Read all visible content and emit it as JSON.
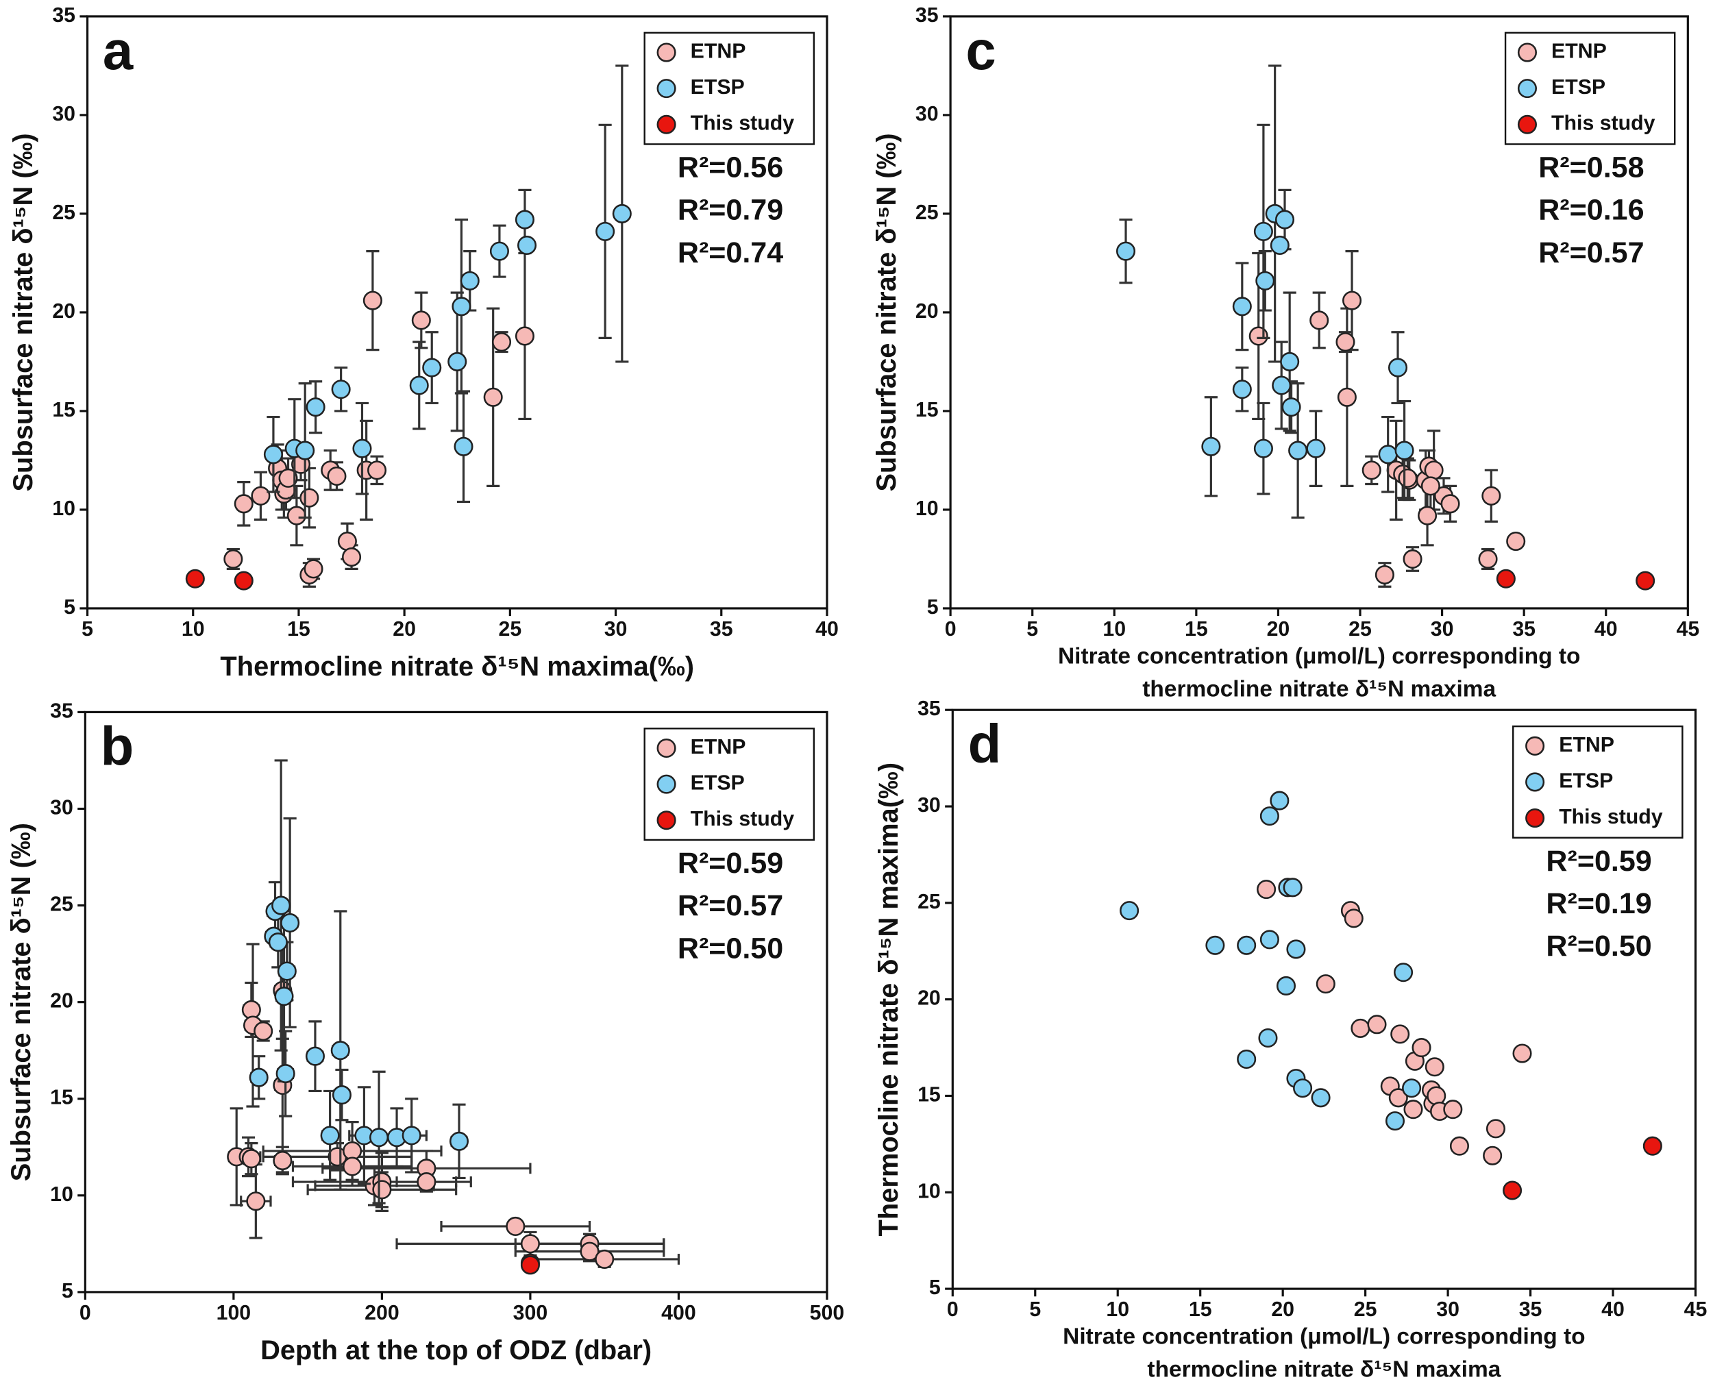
{
  "chart_data": [
    {
      "type": "scatter",
      "panel": "a",
      "xlabel": [
        "Thermocline nitrate δ¹⁵N maxima(‰)"
      ],
      "ylabel": "Subsurface nitrate δ¹⁵N (‰)",
      "xlim": [
        5,
        40
      ],
      "xticks": [
        5,
        10,
        15,
        20,
        25,
        30,
        35,
        40
      ],
      "ylim": [
        5,
        35
      ],
      "yticks": [
        5,
        10,
        15,
        20,
        25,
        30,
        35
      ],
      "legend": "upper right",
      "annotations": [
        {
          "text": "R²=0.56",
          "color": "#f4a09c"
        },
        {
          "text": "R²=0.79",
          "color": "#5ec0ee"
        },
        {
          "text": "R²=0.74",
          "color": "#111111"
        }
      ],
      "series": [
        {
          "name": "ETNP",
          "color": "#f6b9b6",
          "x": [
            12.4,
            13.2,
            14.0,
            14.2,
            14.3,
            14.4,
            14.5,
            14.9,
            15.1,
            15.5,
            15.5,
            15.7,
            16.5,
            16.8,
            17.3,
            17.5,
            18.2,
            18.7,
            18.5,
            20.8,
            24.2,
            24.6,
            25.7,
            11.9
          ],
          "values": [
            10.3,
            10.7,
            12.1,
            11.5,
            10.8,
            11.0,
            11.6,
            9.7,
            12.3,
            10.6,
            6.7,
            7.0,
            12.0,
            11.7,
            8.4,
            7.6,
            12.0,
            12.0,
            20.6,
            19.6,
            15.7,
            18.5,
            18.8,
            7.5
          ],
          "yerr": [
            1.1,
            1.2,
            1.2,
            1.5,
            1.2,
            1.0,
            1.0,
            1.5,
            0.8,
            1.5,
            0.6,
            0.5,
            1.0,
            0.7,
            0.9,
            0.6,
            2.5,
            0.7,
            2.5,
            1.4,
            4.5,
            0.5,
            4.2,
            0.5
          ]
        },
        {
          "name": "ETSP",
          "color": "#82cff2",
          "x": [
            13.8,
            14.8,
            15.3,
            15.8,
            17.0,
            18.0,
            20.7,
            21.3,
            22.5,
            22.7,
            22.8,
            23.1,
            24.5,
            25.7,
            25.8,
            29.5,
            30.3
          ],
          "values": [
            12.8,
            13.1,
            13.0,
            15.2,
            16.1,
            13.1,
            16.3,
            17.2,
            17.5,
            20.3,
            13.2,
            21.6,
            23.1,
            24.7,
            23.4,
            24.1,
            25.0
          ],
          "yerr": [
            1.9,
            2.5,
            3.4,
            1.3,
            1.1,
            2.3,
            2.2,
            1.8,
            3.5,
            4.4,
            2.8,
            1.5,
            1.3,
            1.5,
            0.2,
            5.4,
            7.5
          ]
        },
        {
          "name": "This study",
          "color": "#e8160f",
          "x": [
            10.1,
            12.4
          ],
          "values": [
            6.5,
            6.4
          ]
        }
      ]
    },
    {
      "type": "scatter",
      "panel": "c",
      "xlabel": [
        "Nitrate concentration (μmol/L) corresponding to",
        "thermocline nitrate δ¹⁵N maxima"
      ],
      "ylabel": "Subsurface nitrate δ¹⁵N (‰)",
      "xlim": [
        0,
        45
      ],
      "xticks": [
        0,
        5,
        10,
        15,
        20,
        25,
        30,
        35,
        40,
        45
      ],
      "ylim": [
        5,
        35
      ],
      "yticks": [
        5,
        10,
        15,
        20,
        25,
        30,
        35
      ],
      "legend": "upper right",
      "annotations": [
        {
          "text": "R²=0.58",
          "color": "#f4a09c"
        },
        {
          "text": "R²=0.16",
          "color": "#5ec0ee"
        },
        {
          "text": "R²=0.57",
          "color": "#111111"
        }
      ],
      "series": [
        {
          "name": "ETNP",
          "color": "#f6b9b6",
          "x": [
            18.8,
            22.5,
            24.1,
            24.2,
            24.5,
            25.7,
            26.5,
            27.2,
            27.6,
            28.0,
            28.2,
            29.0,
            29.1,
            29.2,
            29.5,
            30.1,
            30.5,
            32.8,
            33.0,
            34.5,
            27.9,
            29.3
          ],
          "values": [
            18.8,
            19.6,
            18.5,
            15.7,
            20.6,
            12.0,
            6.7,
            12.0,
            11.8,
            11.5,
            7.5,
            11.5,
            9.7,
            12.2,
            12.0,
            10.7,
            10.3,
            7.5,
            10.7,
            8.4,
            11.6,
            11.2
          ],
          "yerr": [
            4.2,
            1.4,
            0.5,
            4.5,
            2.5,
            0.7,
            0.6,
            2.5,
            1.2,
            1.0,
            0.6,
            1.5,
            1.5,
            0.8,
            2.0,
            0.9,
            0.9,
            0.5,
            1.3,
            0.3,
            1.0,
            1.2
          ]
        },
        {
          "name": "ETSP",
          "color": "#82cff2",
          "x": [
            10.7,
            15.9,
            17.8,
            17.8,
            19.1,
            19.1,
            19.2,
            19.8,
            20.1,
            20.2,
            20.4,
            20.7,
            20.8,
            21.2,
            22.3,
            26.7,
            27.3,
            27.7
          ],
          "values": [
            23.1,
            13.2,
            20.3,
            16.1,
            24.1,
            13.1,
            21.6,
            25.0,
            23.4,
            16.3,
            24.7,
            17.5,
            15.2,
            13.0,
            13.1,
            12.8,
            17.2,
            13.0
          ],
          "yerr": [
            1.6,
            2.5,
            2.2,
            1.1,
            5.4,
            2.3,
            1.5,
            7.5,
            0.2,
            2.2,
            1.5,
            3.5,
            1.3,
            3.4,
            1.9,
            1.9,
            1.8,
            2.5
          ]
        },
        {
          "name": "This study",
          "color": "#e8160f",
          "x": [
            33.9,
            42.4
          ],
          "values": [
            6.5,
            6.4
          ]
        }
      ]
    },
    {
      "type": "scatter",
      "panel": "b",
      "xlabel": [
        "Depth at the top of ODZ (dbar)"
      ],
      "ylabel": "Subsurface nitrate δ¹⁵N (‰)",
      "xlim": [
        0,
        500
      ],
      "xticks": [
        0,
        100,
        200,
        300,
        400,
        500
      ],
      "ylim": [
        5,
        35
      ],
      "yticks": [
        5,
        10,
        15,
        20,
        25,
        30,
        35
      ],
      "legend": "upper right",
      "annotations": [
        {
          "text": "R²=0.59",
          "color": "#f4a09c"
        },
        {
          "text": "R²=0.57",
          "color": "#5ec0ee"
        },
        {
          "text": "R²=0.50",
          "color": "#111111"
        }
      ],
      "series": [
        {
          "name": "ETNP",
          "color": "#f6b9b6",
          "x": [
            102,
            110,
            112,
            113,
            115,
            120,
            133,
            133,
            133,
            170,
            180,
            180,
            195,
            200,
            200,
            230,
            230,
            290,
            300,
            340,
            340,
            350,
            112
          ],
          "values": [
            12.0,
            12.0,
            19.6,
            18.8,
            9.7,
            18.5,
            11.8,
            15.7,
            20.6,
            12.0,
            12.3,
            11.5,
            10.5,
            10.7,
            10.3,
            11.4,
            10.7,
            8.4,
            7.5,
            7.5,
            7.1,
            6.7,
            11.9
          ],
          "yerr": [
            2.5,
            1.0,
            1.4,
            4.2,
            1.9,
            0.5,
            0.7,
            4.5,
            2.5,
            0.7,
            1.5,
            1.0,
            1.0,
            1.5,
            0.9,
            0.9,
            0.5,
            0.3,
            0.6,
            0.5,
            0.5,
            0.4,
            0.8
          ],
          "xerr": [
            5,
            8,
            5,
            5,
            10,
            5,
            5,
            5,
            5,
            50,
            60,
            40,
            40,
            60,
            50,
            70,
            20,
            50,
            90,
            50,
            50,
            50,
            5
          ]
        },
        {
          "name": "ETSP",
          "color": "#82cff2",
          "x": [
            117,
            127,
            128,
            130,
            132,
            134,
            135,
            136,
            138,
            155,
            165,
            172,
            173,
            188,
            198,
            210,
            220,
            252
          ],
          "values": [
            16.1,
            23.4,
            24.7,
            23.1,
            25.0,
            20.3,
            16.3,
            21.6,
            24.1,
            17.2,
            13.1,
            17.5,
            15.2,
            13.1,
            13.0,
            13.0,
            13.1,
            12.8
          ],
          "yerr": [
            1.1,
            0.2,
            1.5,
            1.3,
            7.5,
            4.4,
            2.2,
            1.5,
            5.4,
            1.8,
            2.3,
            7.2,
            1.3,
            2.5,
            3.4,
            1.5,
            1.9,
            1.9
          ],
          "xerr": [
            5,
            5,
            5,
            5,
            5,
            5,
            5,
            5,
            5,
            5,
            5,
            5,
            5,
            10,
            10,
            10,
            10,
            5
          ]
        },
        {
          "name": "This study",
          "color": "#e8160f",
          "x": [
            300,
            300
          ],
          "values": [
            6.5,
            6.4
          ]
        }
      ]
    },
    {
      "type": "scatter",
      "panel": "d",
      "xlabel": [
        "Nitrate concentration (μmol/L) corresponding to",
        "thermocline nitrate δ¹⁵N maxima"
      ],
      "ylabel": "Thermocline nitrate δ¹⁵N maxima(‰)",
      "xlim": [
        0,
        45
      ],
      "xticks": [
        0,
        5,
        10,
        15,
        20,
        25,
        30,
        35,
        40,
        45
      ],
      "ylim": [
        5,
        35
      ],
      "yticks": [
        5,
        10,
        15,
        20,
        25,
        30,
        35
      ],
      "legend": "upper right",
      "annotations": [
        {
          "text": "R²=0.59",
          "color": "#f4a09c"
        },
        {
          "text": "R²=0.19",
          "color": "#5ec0ee"
        },
        {
          "text": "R²=0.50",
          "color": "#111111"
        }
      ],
      "series": [
        {
          "name": "ETNP",
          "color": "#f6b9b6",
          "x": [
            19.0,
            22.6,
            24.1,
            24.3,
            24.7,
            25.7,
            26.5,
            27.0,
            27.1,
            27.9,
            28.0,
            28.4,
            29.0,
            29.1,
            29.2,
            29.3,
            29.5,
            30.3,
            30.7,
            32.7,
            32.9,
            34.5
          ],
          "values": [
            25.7,
            20.8,
            24.6,
            24.2,
            18.5,
            18.7,
            15.5,
            14.9,
            18.2,
            14.3,
            16.8,
            17.5,
            15.3,
            14.6,
            16.5,
            15.0,
            14.2,
            14.3,
            12.4,
            11.9,
            13.3,
            17.2
          ]
        },
        {
          "name": "ETSP",
          "color": "#82cff2",
          "x": [
            10.7,
            15.9,
            17.8,
            17.8,
            19.1,
            19.2,
            19.2,
            19.8,
            20.2,
            20.3,
            20.6,
            20.8,
            20.8,
            21.2,
            22.3,
            26.8,
            27.3,
            27.8
          ],
          "values": [
            24.6,
            22.8,
            16.9,
            22.8,
            18.0,
            23.1,
            29.5,
            30.3,
            20.7,
            25.8,
            25.8,
            22.6,
            15.9,
            15.4,
            14.9,
            13.7,
            21.4,
            15.4
          ]
        },
        {
          "name": "This study",
          "color": "#e8160f",
          "x": [
            33.9,
            42.4
          ],
          "values": [
            10.1,
            12.4
          ]
        }
      ]
    }
  ]
}
